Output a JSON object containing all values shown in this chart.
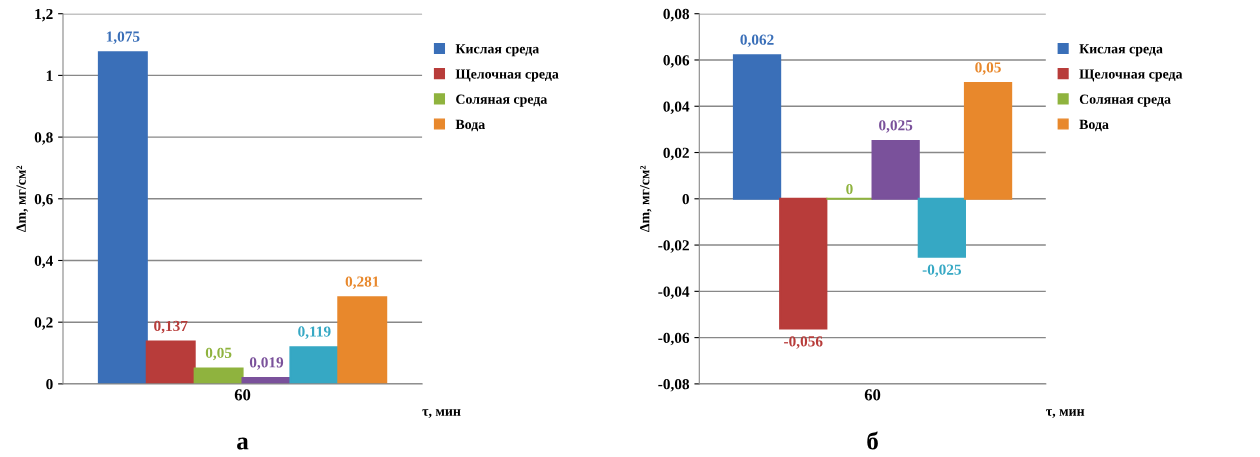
{
  "chart_data": [
    {
      "type": "bar",
      "title": "а",
      "xlabel": "τ, мин",
      "ylabel": "Δm, мг/см²",
      "categories": [
        "60"
      ],
      "grid": "y",
      "legend": "right",
      "ylim": [
        0,
        1.2
      ],
      "yticks": [
        {
          "value": 0,
          "label": "0"
        },
        {
          "value": 0.2,
          "label": "0,2"
        },
        {
          "value": 0.4,
          "label": "0,4"
        },
        {
          "value": 0.6,
          "label": "0,6"
        },
        {
          "value": 0.8,
          "label": "0,8"
        },
        {
          "value": 1,
          "label": "1"
        },
        {
          "value": 1.2,
          "label": "1,2"
        }
      ],
      "series": [
        {
          "name": "Кислая среда",
          "color": "#3a6fb8",
          "values": [
            1.075
          ],
          "value_labels": [
            "1,075"
          ]
        },
        {
          "name": "Щелочная среда",
          "color": "#b83c3a",
          "values": [
            0.137
          ],
          "value_labels": [
            "0,137"
          ]
        },
        {
          "name": "Соляная среда",
          "color": "#8fb33e",
          "values": [
            0.05
          ],
          "value_labels": [
            "0,05"
          ]
        },
        {
          "color": "#7a519b",
          "values": [
            0.019
          ],
          "value_labels": [
            "0,019"
          ]
        },
        {
          "color": "#36a8c4",
          "values": [
            0.119
          ],
          "value_labels": [
            "0,119"
          ]
        },
        {
          "name": "Вода",
          "color": "#e8882c",
          "values": [
            0.281
          ],
          "value_labels": [
            "0,281"
          ]
        }
      ]
    },
    {
      "type": "bar",
      "title": "б",
      "xlabel": "τ, мин",
      "ylabel": "Δm, мг/см²",
      "categories": [
        "60"
      ],
      "grid": "y",
      "legend": "right",
      "ylim": [
        -0.08,
        0.08
      ],
      "yticks": [
        {
          "value": -0.08,
          "label": "-0,08"
        },
        {
          "value": -0.06,
          "label": "-0,06"
        },
        {
          "value": -0.04,
          "label": "-0,04"
        },
        {
          "value": -0.02,
          "label": "-0,02"
        },
        {
          "value": 0,
          "label": "0"
        },
        {
          "value": 0.02,
          "label": "0,02"
        },
        {
          "value": 0.04,
          "label": "0,04"
        },
        {
          "value": 0.06,
          "label": "0,06"
        },
        {
          "value": 0.08,
          "label": "0,08"
        }
      ],
      "series": [
        {
          "name": "Кислая среда",
          "color": "#3a6fb8",
          "values": [
            0.062
          ],
          "value_labels": [
            "0,062"
          ]
        },
        {
          "name": "Щелочная среда",
          "color": "#b83c3a",
          "values": [
            -0.056
          ],
          "value_labels": [
            "-0,056"
          ]
        },
        {
          "name": "Соляная среда",
          "color": "#8fb33e",
          "values": [
            0
          ],
          "value_labels": [
            "0"
          ]
        },
        {
          "color": "#7a519b",
          "values": [
            0.025
          ],
          "value_labels": [
            "0,025"
          ]
        },
        {
          "color": "#36a8c4",
          "values": [
            -0.025
          ],
          "value_labels": [
            "-0,025"
          ]
        },
        {
          "name": "Вода",
          "color": "#e8882c",
          "values": [
            0.05
          ],
          "value_labels": [
            "0,05"
          ]
        }
      ]
    }
  ]
}
